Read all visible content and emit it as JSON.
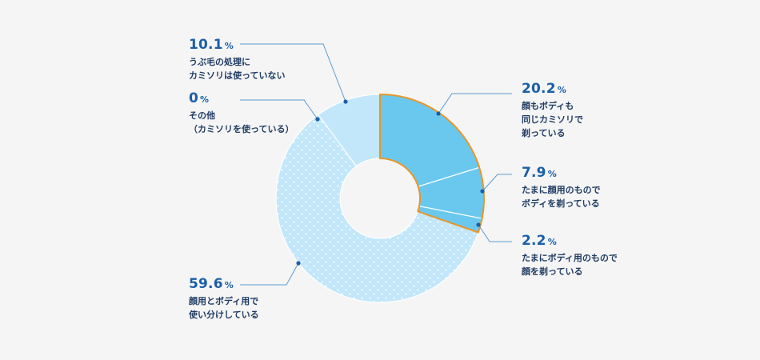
{
  "chart_data": {
    "type": "pie",
    "variant": "donut",
    "unit": "%",
    "slices": [
      {
        "value": 20.2,
        "value_text": "20.2",
        "lines": [
          "顔もボディも",
          "同じカミソリで",
          "剃っている"
        ],
        "color": "#6ac8ee",
        "pattern": "solid",
        "highlight": true
      },
      {
        "value": 7.9,
        "value_text": "7.9",
        "lines": [
          "たまに顔用のもので",
          "ボディを剃っている"
        ],
        "color": "#6ac8ee",
        "pattern": "solid",
        "highlight": true
      },
      {
        "value": 2.2,
        "value_text": "2.2",
        "lines": [
          "たまにボディ用のもので",
          "顔を剃っている"
        ],
        "color": "#6ac8ee",
        "pattern": "solid",
        "highlight": true
      },
      {
        "value": 59.6,
        "value_text": "59.6",
        "lines": [
          "顔用とボディ用で",
          "使い分けしている"
        ],
        "color": "#c2e6fa",
        "pattern": "dots",
        "highlight": false
      },
      {
        "value": 0,
        "value_text": "0",
        "lines": [
          "その他",
          "（カミソリを使っている）"
        ],
        "color": "#c2e6fa",
        "pattern": "solid",
        "highlight": false
      },
      {
        "value": 10.1,
        "value_text": "10.1",
        "lines": [
          "うぶ毛の処理に",
          "カミソリは使っていない"
        ],
        "color": "#c2e6fa",
        "pattern": "solid",
        "highlight": false
      }
    ],
    "highlight_color": "#e8962a",
    "leader_color": "#5b9bd0"
  }
}
